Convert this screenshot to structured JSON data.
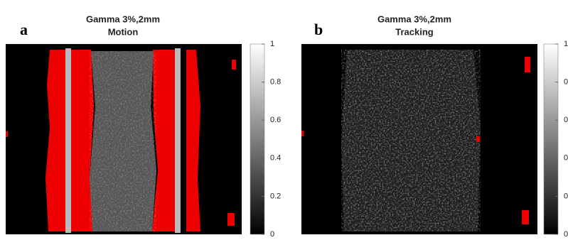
{
  "panels": [
    {
      "label": "a",
      "title": [
        "Gamma 3%,2mm",
        "Motion"
      ],
      "colorbar": {
        "clim": [
          0,
          1
        ],
        "ticks": [
          0,
          0.2,
          0.4,
          0.6,
          0.8,
          1
        ]
      }
    },
    {
      "label": "b",
      "title": [
        "Gamma 3%,2mm",
        "Tracking"
      ],
      "colorbar": {
        "clim": [
          0,
          1
        ],
        "ticks": [
          0,
          0.2,
          0.4,
          0.6,
          0.8,
          1
        ]
      }
    }
  ]
}
